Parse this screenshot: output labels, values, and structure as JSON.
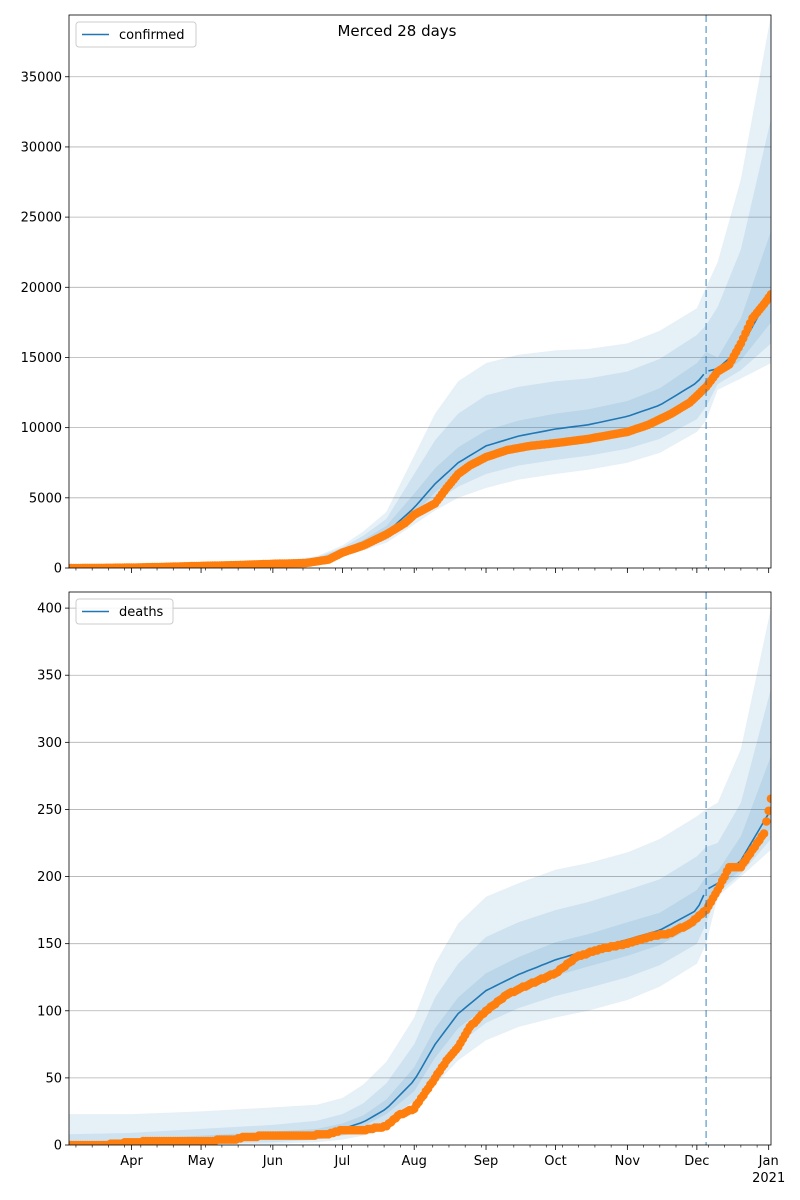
{
  "figure": {
    "title": "Merced 28 days"
  },
  "colors": {
    "model": "#1f77b4",
    "observed": "#ff7f0e",
    "band": "#1f77b4",
    "forecast_line": "#1f77b4",
    "grid": "#b0b0b0"
  },
  "x_axis": {
    "month_ticks": [
      {
        "label": "Apr",
        "date": "2020-04-01"
      },
      {
        "label": "May",
        "date": "2020-05-01"
      },
      {
        "label": "Jun",
        "date": "2020-06-01"
      },
      {
        "label": "Jul",
        "date": "2020-07-01"
      },
      {
        "label": "Aug",
        "date": "2020-08-01"
      },
      {
        "label": "Sep",
        "date": "2020-09-01"
      },
      {
        "label": "Oct",
        "date": "2020-10-01"
      },
      {
        "label": "Nov",
        "date": "2020-11-01"
      },
      {
        "label": "Dec",
        "date": "2020-12-01"
      },
      {
        "label": "Jan",
        "date": "2021-01-01"
      }
    ],
    "year_label": "2021",
    "range": [
      "2020-03-05",
      "2021-01-02"
    ],
    "forecast_start": "2020-12-05"
  },
  "chart_data": [
    {
      "type": "line",
      "legend": "confirmed",
      "legend_position": "top-left",
      "grid": "horizontal",
      "ylim": [
        0,
        39400
      ],
      "yticks": [
        0,
        5000,
        10000,
        15000,
        20000,
        25000,
        30000,
        35000
      ],
      "model": {
        "x": [
          "2020-03-05",
          "2020-04-01",
          "2020-05-01",
          "2020-06-01",
          "2020-06-20",
          "2020-07-01",
          "2020-07-10",
          "2020-07-20",
          "2020-08-01",
          "2020-08-10",
          "2020-08-20",
          "2020-09-01",
          "2020-09-15",
          "2020-10-01",
          "2020-10-15",
          "2020-11-01",
          "2020-11-15",
          "2020-12-01",
          "2020-12-05",
          "2020-12-10",
          "2020-12-20",
          "2021-01-02"
        ],
        "mid": [
          0,
          50,
          150,
          300,
          600,
          1100,
          1700,
          2500,
          4300,
          6000,
          7500,
          8700,
          9400,
          9900,
          10200,
          10800,
          11600,
          13200,
          14000,
          14200,
          15700,
          19600
        ],
        "lo95": [
          0,
          40,
          120,
          250,
          480,
          850,
          1250,
          1800,
          3100,
          4100,
          5000,
          5700,
          6300,
          6700,
          7000,
          7500,
          8200,
          9700,
          10500,
          12700,
          13500,
          14600
        ],
        "hi95": [
          0,
          70,
          200,
          400,
          850,
          1600,
          2600,
          4000,
          8000,
          11000,
          13300,
          14600,
          15200,
          15500,
          15600,
          16000,
          16900,
          18500,
          20000,
          21800,
          27700,
          39400
        ],
        "lo50": [
          0,
          45,
          135,
          280,
          540,
          980,
          1500,
          2200,
          3800,
          5400,
          6700,
          7800,
          8400,
          8900,
          9200,
          9700,
          10400,
          11800,
          12600,
          13600,
          14800,
          17500
        ],
        "hi50": [
          0,
          58,
          170,
          340,
          700,
          1300,
          2000,
          3000,
          5300,
          7100,
          8600,
          9800,
          10500,
          11000,
          11300,
          11900,
          12800,
          14600,
          15400,
          15000,
          17800,
          24000
        ],
        "lo80": [
          0,
          42,
          125,
          262,
          505,
          910,
          1380,
          2000,
          3400,
          4700,
          5800,
          6700,
          7300,
          7700,
          8000,
          8500,
          9200,
          10600,
          11500,
          13100,
          14100,
          16000
        ],
        "hi80": [
          0,
          63,
          185,
          370,
          780,
          1450,
          2300,
          3500,
          6700,
          9100,
          11000,
          12300,
          12900,
          13300,
          13500,
          14000,
          14900,
          16600,
          17300,
          18600,
          22700,
          32000
        ]
      },
      "observed": {
        "x": [
          "2020-03-05",
          "2020-03-20",
          "2020-04-01",
          "2020-04-15",
          "2020-05-01",
          "2020-05-15",
          "2020-06-01",
          "2020-06-15",
          "2020-06-25",
          "2020-07-01",
          "2020-07-10",
          "2020-07-20",
          "2020-07-28",
          "2020-08-01",
          "2020-08-10",
          "2020-08-15",
          "2020-08-20",
          "2020-08-25",
          "2020-09-01",
          "2020-09-10",
          "2020-09-20",
          "2020-10-01",
          "2020-10-15",
          "2020-11-01",
          "2020-11-10",
          "2020-11-20",
          "2020-11-28",
          "2020-12-05",
          "2020-12-10",
          "2020-12-15",
          "2020-12-20",
          "2020-12-25",
          "2020-12-30",
          "2021-01-02"
        ],
        "y": [
          0,
          10,
          30,
          80,
          150,
          200,
          300,
          350,
          600,
          1100,
          1600,
          2400,
          3200,
          3800,
          4600,
          5700,
          6700,
          7300,
          7900,
          8400,
          8700,
          8900,
          9200,
          9700,
          10200,
          11000,
          11800,
          12900,
          14000,
          14500,
          16000,
          17800,
          18800,
          19500
        ]
      }
    },
    {
      "type": "line",
      "legend": "deaths",
      "legend_position": "top-left",
      "grid": "horizontal",
      "ylim": [
        0,
        412
      ],
      "yticks": [
        0,
        50,
        100,
        150,
        200,
        250,
        300,
        350,
        400
      ],
      "model": {
        "x": [
          "2020-03-05",
          "2020-04-01",
          "2020-05-01",
          "2020-06-01",
          "2020-06-20",
          "2020-07-01",
          "2020-07-10",
          "2020-07-20",
          "2020-08-01",
          "2020-08-10",
          "2020-08-20",
          "2020-09-01",
          "2020-09-15",
          "2020-10-01",
          "2020-10-15",
          "2020-11-01",
          "2020-11-15",
          "2020-12-01",
          "2020-12-05",
          "2020-12-10",
          "2020-12-20",
          "2021-01-02"
        ],
        "mid": [
          0,
          2,
          4,
          7,
          9,
          12,
          17,
          27,
          48,
          75,
          98,
          115,
          127,
          138,
          145,
          153,
          160,
          175,
          190,
          195,
          212,
          250
        ],
        "lo95": [
          0,
          0,
          0,
          1,
          2,
          4,
          7,
          13,
          27,
          45,
          63,
          78,
          88,
          95,
          100,
          108,
          118,
          135,
          150,
          185,
          200,
          220
        ],
        "hi95": [
          23,
          23,
          25,
          28,
          30,
          35,
          45,
          62,
          95,
          135,
          165,
          185,
          195,
          205,
          210,
          218,
          228,
          245,
          250,
          255,
          295,
          400
        ],
        "lo50": [
          0,
          1,
          3,
          5,
          7,
          10,
          14,
          23,
          40,
          65,
          87,
          103,
          115,
          126,
          133,
          141,
          149,
          164,
          178,
          190,
          205,
          236
        ],
        "hi50": [
          2,
          4,
          7,
          10,
          12,
          16,
          22,
          34,
          58,
          87,
          110,
          128,
          140,
          151,
          157,
          166,
          173,
          190,
          200,
          204,
          230,
          290
        ],
        "lo80": [
          0,
          0,
          1,
          2,
          4,
          7,
          11,
          18,
          33,
          55,
          75,
          91,
          102,
          111,
          117,
          125,
          134,
          150,
          165,
          188,
          202,
          228
        ],
        "hi80": [
          8,
          9,
          12,
          15,
          18,
          23,
          31,
          46,
          75,
          110,
          135,
          155,
          166,
          175,
          181,
          190,
          198,
          215,
          222,
          225,
          255,
          340
        ]
      },
      "observed": {
        "x": [
          "2020-03-05",
          "2020-03-20",
          "2020-04-01",
          "2020-04-10",
          "2020-05-01",
          "2020-05-15",
          "2020-05-20",
          "2020-06-01",
          "2020-06-15",
          "2020-06-25",
          "2020-07-01",
          "2020-07-10",
          "2020-07-20",
          "2020-07-25",
          "2020-08-01",
          "2020-08-10",
          "2020-08-15",
          "2020-08-20",
          "2020-08-25",
          "2020-09-01",
          "2020-09-10",
          "2020-09-20",
          "2020-10-01",
          "2020-10-10",
          "2020-10-20",
          "2020-11-01",
          "2020-11-10",
          "2020-11-20",
          "2020-11-28",
          "2020-12-05",
          "2020-12-10",
          "2020-12-15",
          "2020-12-20",
          "2020-12-25",
          "2020-12-30",
          "2021-01-02"
        ],
        "y": [
          0,
          0,
          2,
          3,
          3,
          4,
          6,
          7,
          7,
          8,
          11,
          11,
          14,
          22,
          27,
          50,
          63,
          73,
          88,
          100,
          112,
          120,
          128,
          140,
          146,
          150,
          155,
          158,
          165,
          175,
          190,
          207,
          207,
          220,
          232,
          258
        ]
      }
    }
  ]
}
